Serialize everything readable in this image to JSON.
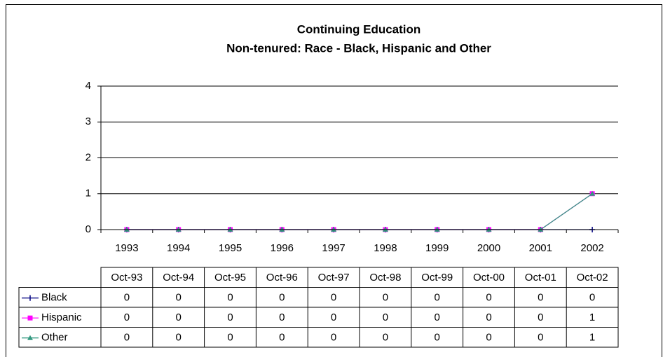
{
  "chart_data": {
    "type": "line",
    "title": "Continuing Education",
    "subtitle": "Non-tenured: Race - Black, Hispanic and Other",
    "categories": [
      "1993",
      "1994",
      "1995",
      "1996",
      "1997",
      "1998",
      "1999",
      "2000",
      "2001",
      "2002"
    ],
    "table_columns": [
      "Oct-93",
      "Oct-94",
      "Oct-95",
      "Oct-96",
      "Oct-97",
      "Oct-98",
      "Oct-99",
      "Oct-00",
      "Oct-01",
      "Oct-02"
    ],
    "series": [
      {
        "name": "Black",
        "color": "#000080",
        "marker": "plus",
        "values": [
          0,
          0,
          0,
          0,
          0,
          0,
          0,
          0,
          0,
          0
        ]
      },
      {
        "name": "Hispanic",
        "color": "#ff00ff",
        "marker": "square",
        "values": [
          0,
          0,
          0,
          0,
          0,
          0,
          0,
          0,
          0,
          1
        ]
      },
      {
        "name": "Other",
        "color": "#339980",
        "marker": "triangle",
        "values": [
          0,
          0,
          0,
          0,
          0,
          0,
          0,
          0,
          0,
          1
        ]
      }
    ],
    "ylim": [
      0,
      4
    ],
    "yticks": [
      0,
      1,
      2,
      3,
      4
    ],
    "grid": true
  }
}
